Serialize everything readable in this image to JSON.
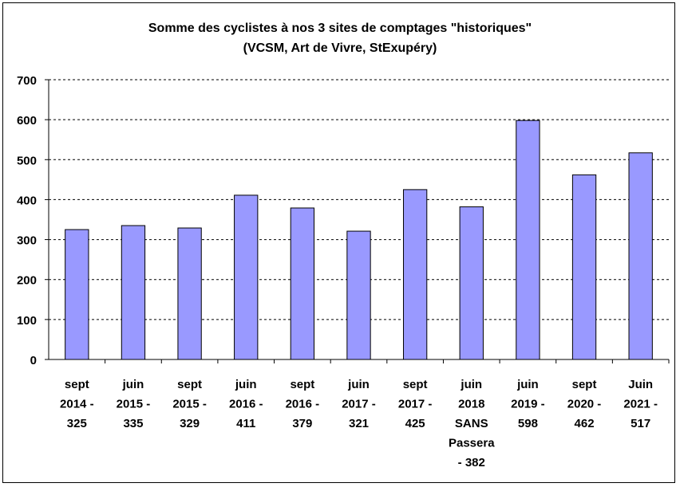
{
  "chart_data": {
    "type": "bar",
    "title": "Somme des cyclistes à nos 3 sites de comptages \"historiques\"",
    "subtitle": "(VCSM, Art de Vivre, StExupéry)",
    "categories": [
      [
        "sept",
        "2014 -",
        "325"
      ],
      [
        "juin",
        "2015 -",
        "335"
      ],
      [
        "sept",
        "2015 -",
        "329"
      ],
      [
        "juin",
        "2016 -",
        "411"
      ],
      [
        "sept",
        "2016 -",
        "379"
      ],
      [
        "juin",
        "2017 -",
        "321"
      ],
      [
        "sept",
        "2017 -",
        "425"
      ],
      [
        "juin",
        "2018",
        "SANS",
        "Passera",
        "- 382"
      ],
      [
        "juin",
        "2019 -",
        "598"
      ],
      [
        "sept",
        "2020 -",
        "462"
      ],
      [
        "Juin",
        "2021 -",
        "517"
      ]
    ],
    "values": [
      325,
      335,
      329,
      411,
      379,
      321,
      425,
      382,
      598,
      462,
      517
    ],
    "ylim": [
      0,
      700
    ],
    "yticks": [
      0,
      100,
      200,
      300,
      400,
      500,
      600,
      700
    ],
    "grid": true,
    "bar_color": "#9999ff",
    "xlabel": "",
    "ylabel": ""
  }
}
